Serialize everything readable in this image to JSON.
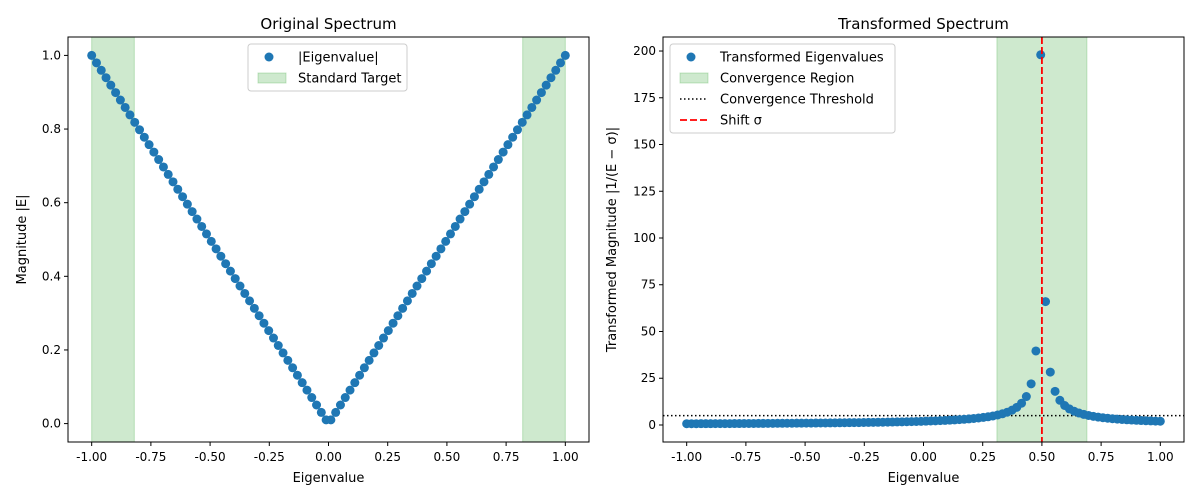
{
  "chart_data": [
    {
      "type": "scatter",
      "title": "Original Spectrum",
      "xlabel": "Eigenvalue",
      "ylabel": "Magnitude |E|",
      "xlim": [
        -1.1,
        1.1
      ],
      "ylim": [
        -0.05,
        1.05
      ],
      "xticks": [
        "-1.00",
        "-0.75",
        "-0.50",
        "-0.25",
        "0.00",
        "0.25",
        "0.50",
        "0.75",
        "1.00"
      ],
      "yticks": [
        "0.0",
        "0.2",
        "0.4",
        "0.6",
        "0.8",
        "1.0"
      ],
      "grid": false,
      "legend_position": "top-center",
      "series": [
        {
          "name": "|Eigenvalue|",
          "color": "#1f77b4",
          "x": [
            -1.0,
            -0.9798,
            -0.9596,
            -0.9394,
            -0.9192,
            -0.899,
            -0.8788,
            -0.8586,
            -0.8384,
            -0.8182,
            -0.798,
            -0.7778,
            -0.7576,
            -0.7374,
            -0.7172,
            -0.697,
            -0.6768,
            -0.6566,
            -0.6364,
            -0.6162,
            -0.596,
            -0.5758,
            -0.5556,
            -0.5354,
            -0.5152,
            -0.4949,
            -0.4747,
            -0.4545,
            -0.4343,
            -0.4141,
            -0.3939,
            -0.3737,
            -0.3535,
            -0.3333,
            -0.3131,
            -0.2929,
            -0.2727,
            -0.2525,
            -0.2323,
            -0.2121,
            -0.1919,
            -0.1717,
            -0.1515,
            -0.1313,
            -0.1111,
            -0.0909,
            -0.0707,
            -0.0505,
            -0.0303,
            -0.0101,
            0.0101,
            0.0303,
            0.0505,
            0.0707,
            0.0909,
            0.1111,
            0.1313,
            0.1515,
            0.1717,
            0.1919,
            0.2121,
            0.2323,
            0.2525,
            0.2727,
            0.2929,
            0.3131,
            0.3333,
            0.3535,
            0.3737,
            0.3939,
            0.4141,
            0.4343,
            0.4545,
            0.4747,
            0.4949,
            0.5152,
            0.5354,
            0.5556,
            0.5758,
            0.596,
            0.6162,
            0.6364,
            0.6566,
            0.6768,
            0.697,
            0.7172,
            0.7374,
            0.7576,
            0.7778,
            0.798,
            0.8182,
            0.8384,
            0.8586,
            0.8788,
            0.899,
            0.9192,
            0.9394,
            0.9596,
            0.9798,
            1.0
          ],
          "y": [
            1.0,
            0.9798,
            0.9596,
            0.9394,
            0.9192,
            0.899,
            0.8788,
            0.8586,
            0.8384,
            0.8182,
            0.798,
            0.7778,
            0.7576,
            0.7374,
            0.7172,
            0.697,
            0.6768,
            0.6566,
            0.6364,
            0.6162,
            0.596,
            0.5758,
            0.5556,
            0.5354,
            0.5152,
            0.4949,
            0.4747,
            0.4545,
            0.4343,
            0.4141,
            0.3939,
            0.3737,
            0.3535,
            0.3333,
            0.3131,
            0.2929,
            0.2727,
            0.2525,
            0.2323,
            0.2121,
            0.1919,
            0.1717,
            0.1515,
            0.1313,
            0.1111,
            0.0909,
            0.0707,
            0.0505,
            0.0303,
            0.0101,
            0.0101,
            0.0303,
            0.0505,
            0.0707,
            0.0909,
            0.1111,
            0.1313,
            0.1515,
            0.1717,
            0.1919,
            0.2121,
            0.2323,
            0.2525,
            0.2727,
            0.2929,
            0.3131,
            0.3333,
            0.3535,
            0.3737,
            0.3939,
            0.4141,
            0.4343,
            0.4545,
            0.4747,
            0.4949,
            0.5152,
            0.5354,
            0.5556,
            0.5758,
            0.596,
            0.6162,
            0.6364,
            0.6566,
            0.6768,
            0.697,
            0.7172,
            0.7374,
            0.7576,
            0.7778,
            0.798,
            0.8182,
            0.8384,
            0.8586,
            0.8788,
            0.899,
            0.9192,
            0.9394,
            0.9596,
            0.9798,
            1.0
          ]
        }
      ],
      "spans": [
        {
          "name": "Standard Target",
          "color": "#2ca02c",
          "opacity": 0.23,
          "ranges": [
            [
              -1.0,
              -0.82
            ],
            [
              0.82,
              1.0
            ]
          ]
        }
      ],
      "hlines": [],
      "vlines": []
    },
    {
      "type": "scatter",
      "title": "Transformed Spectrum",
      "xlabel": "Eigenvalue",
      "ylabel": "Transformed Magnitude |1/(E − σ)|",
      "xlim": [
        -1.1,
        1.1
      ],
      "ylim": [
        -9.1,
        207.5
      ],
      "xticks": [
        "-1.00",
        "-0.75",
        "-0.50",
        "-0.25",
        "0.00",
        "0.25",
        "0.50",
        "0.75",
        "1.00"
      ],
      "yticks": [
        "0",
        "25",
        "50",
        "75",
        "100",
        "125",
        "150",
        "175",
        "200"
      ],
      "grid": false,
      "legend_position": "top-left",
      "series": [
        {
          "name": "Transformed Eigenvalues",
          "color": "#1f77b4",
          "x": [
            -1.0,
            -0.9798,
            -0.9596,
            -0.9394,
            -0.9192,
            -0.899,
            -0.8788,
            -0.8586,
            -0.8384,
            -0.8182,
            -0.798,
            -0.7778,
            -0.7576,
            -0.7374,
            -0.7172,
            -0.697,
            -0.6768,
            -0.6566,
            -0.6364,
            -0.6162,
            -0.596,
            -0.5758,
            -0.5556,
            -0.5354,
            -0.5152,
            -0.4949,
            -0.4747,
            -0.4545,
            -0.4343,
            -0.4141,
            -0.3939,
            -0.3737,
            -0.3535,
            -0.3333,
            -0.3131,
            -0.2929,
            -0.2727,
            -0.2525,
            -0.2323,
            -0.2121,
            -0.1919,
            -0.1717,
            -0.1515,
            -0.1313,
            -0.1111,
            -0.0909,
            -0.0707,
            -0.0505,
            -0.0303,
            -0.0101,
            0.0101,
            0.0303,
            0.0505,
            0.0707,
            0.0909,
            0.1111,
            0.1313,
            0.1515,
            0.1717,
            0.1919,
            0.2121,
            0.2323,
            0.2525,
            0.2727,
            0.2929,
            0.3131,
            0.3333,
            0.3535,
            0.3737,
            0.3939,
            0.4141,
            0.4343,
            0.4545,
            0.4747,
            0.4949,
            0.5152,
            0.5354,
            0.5556,
            0.5758,
            0.596,
            0.6162,
            0.6364,
            0.6566,
            0.6768,
            0.697,
            0.7172,
            0.7374,
            0.7576,
            0.7778,
            0.798,
            0.8182,
            0.8384,
            0.8586,
            0.8788,
            0.899,
            0.9192,
            0.9394,
            0.9596,
            0.9798,
            1.0
          ],
          "y": [
            0.667,
            0.676,
            0.685,
            0.695,
            0.705,
            0.715,
            0.725,
            0.736,
            0.747,
            0.759,
            0.77,
            0.783,
            0.795,
            0.808,
            0.822,
            0.835,
            0.85,
            0.865,
            0.88,
            0.896,
            0.912,
            0.93,
            0.947,
            0.966,
            0.985,
            1.005,
            1.026,
            1.048,
            1.07,
            1.094,
            1.119,
            1.145,
            1.172,
            1.2,
            1.23,
            1.261,
            1.294,
            1.329,
            1.366,
            1.404,
            1.445,
            1.489,
            1.535,
            1.584,
            1.636,
            1.692,
            1.752,
            1.817,
            1.886,
            1.96,
            2.041,
            2.129,
            2.225,
            2.329,
            2.444,
            2.571,
            2.712,
            2.87,
            3.046,
            3.246,
            3.474,
            3.736,
            4.041,
            4.4,
            4.829,
            5.351,
            6.0,
            6.828,
            7.92,
            9.429,
            11.647,
            15.231,
            22.0,
            39.6,
            198.0,
            66.0,
            28.29,
            18.0,
            13.2,
            10.42,
            8.609,
            7.333,
            6.387,
            5.657,
            5.077,
            4.605,
            4.213,
            3.882,
            3.6,
            3.356,
            3.143,
            2.955,
            2.789,
            2.64,
            2.506,
            2.386,
            2.276,
            2.176,
            2.084,
            2.0
          ]
        }
      ],
      "spans": [
        {
          "name": "Convergence Region",
          "color": "#2ca02c",
          "opacity": 0.23,
          "ranges": [
            [
              0.31,
              0.69
            ]
          ]
        }
      ],
      "hlines": [
        {
          "name": "Convergence Threshold",
          "y": 5,
          "color": "#000000",
          "style": "dotted"
        }
      ],
      "vlines": [
        {
          "name": "Shift σ",
          "x": 0.5,
          "color": "#ff0000",
          "style": "dashed"
        }
      ]
    }
  ]
}
